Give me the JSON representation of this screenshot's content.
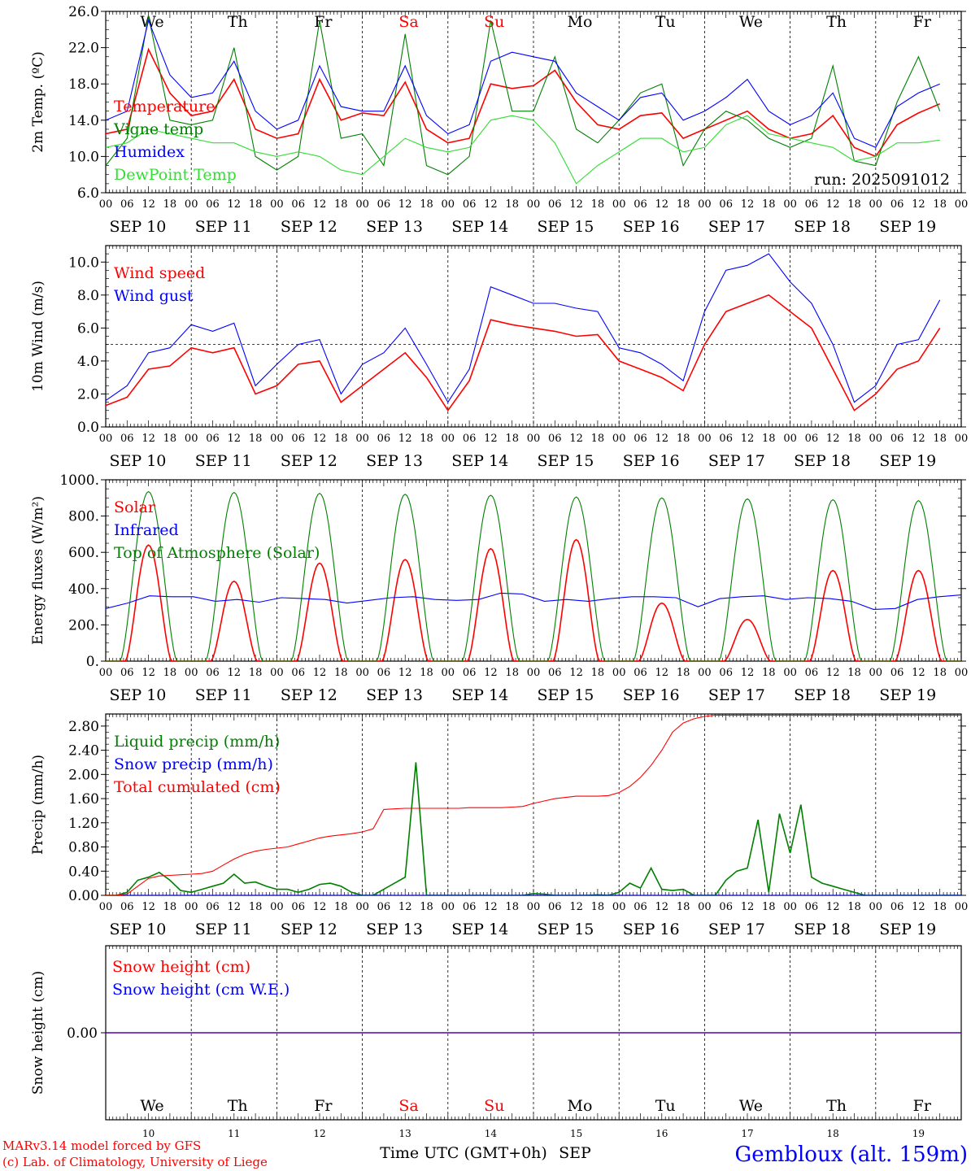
{
  "run_label": "run: 2025091012",
  "footer": {
    "model_line": "MARv3.14 model forced by GFS",
    "lab_line": "(c) Lab. of Climatology, University of Liege",
    "time_axis_label": "Time UTC (GMT+0h)",
    "month_label": "SEP",
    "station": "Gembloux (alt. 159m)"
  },
  "hour_ticks": [
    "00",
    "06",
    "12",
    "18"
  ],
  "final_hour_tick": "00",
  "day_dates": [
    "SEP 10",
    "SEP 11",
    "SEP 12",
    "SEP 13",
    "SEP 14",
    "SEP 15",
    "SEP 16",
    "SEP 17",
    "SEP 18",
    "SEP 19"
  ],
  "day_numbers": [
    "10",
    "11",
    "12",
    "13",
    "14",
    "15",
    "16",
    "17",
    "18",
    "19"
  ],
  "weekdays": [
    "We",
    "Th",
    "Fr",
    "Sa",
    "Su",
    "Mo",
    "Tu",
    "We",
    "Th",
    "Fr"
  ],
  "weekend_indices": [
    3,
    4
  ],
  "colors": {
    "red": "#ff0000",
    "green": "#007f00",
    "blue": "#0000ff",
    "light_green": "#33dd33",
    "weekend": "#ff0000",
    "station": "#0000ff"
  },
  "chart_data": [
    {
      "type": "line",
      "ylabel": "2m Temp. (ºC)",
      "ylim": [
        6,
        26
      ],
      "yticks": [
        "6.0",
        "10.0",
        "14.0",
        "18.0",
        "22.0",
        "26.0"
      ],
      "x_unit": "hours since 2025-09-10 00 UTC",
      "x": [
        0,
        6,
        12,
        18,
        24,
        30,
        36,
        42,
        48,
        54,
        60,
        66,
        72,
        78,
        84,
        90,
        96,
        102,
        108,
        114,
        120,
        126,
        132,
        138,
        144,
        150,
        156,
        162,
        168,
        174,
        180,
        186,
        192,
        198,
        204,
        210,
        216,
        222,
        228,
        234
      ],
      "series": [
        {
          "name": "Temperature",
          "color": "red",
          "values": [
            12.5,
            13.0,
            21.8,
            17.0,
            14.5,
            15.0,
            18.5,
            13.0,
            12.0,
            12.5,
            18.5,
            14.0,
            14.8,
            14.5,
            18.2,
            13.0,
            11.5,
            12.0,
            18.0,
            17.5,
            17.8,
            19.5,
            16.0,
            13.5,
            13.0,
            14.5,
            14.8,
            12.0,
            13.0,
            14.0,
            15.0,
            13.0,
            12.0,
            12.5,
            14.5,
            11.0,
            10.0,
            13.5,
            14.8,
            15.8
          ]
        },
        {
          "name": "Vigne temp",
          "color": "green",
          "values": [
            9.0,
            12.0,
            25.5,
            14.0,
            13.5,
            14.0,
            22.0,
            10.0,
            8.5,
            10.0,
            25.0,
            12.0,
            12.5,
            9.0,
            23.5,
            9.0,
            8.0,
            10.0,
            25.0,
            15.0,
            15.0,
            21.0,
            13.0,
            11.5,
            14.0,
            17.0,
            18.0,
            9.0,
            13.0,
            15.0,
            14.0,
            12.0,
            11.0,
            12.0,
            20.0,
            9.5,
            9.0,
            16.0,
            21.0,
            15.0
          ]
        },
        {
          "name": "Humidex",
          "color": "blue",
          "values": [
            14.0,
            15.0,
            25.0,
            19.0,
            16.5,
            17.0,
            20.5,
            15.0,
            13.0,
            14.0,
            20.0,
            15.5,
            15.0,
            15.0,
            20.0,
            14.5,
            12.5,
            13.5,
            20.5,
            21.5,
            21.0,
            20.5,
            17.0,
            15.5,
            14.0,
            16.5,
            17.0,
            14.0,
            15.0,
            16.5,
            18.5,
            15.0,
            13.5,
            14.5,
            17.0,
            12.0,
            11.0,
            15.5,
            17.0,
            18.0
          ]
        },
        {
          "name": "DewPoint Temp",
          "color": "light_green",
          "values": [
            11.0,
            11.5,
            13.0,
            12.5,
            12.0,
            11.5,
            11.5,
            10.5,
            10.0,
            10.5,
            10.0,
            8.5,
            8.0,
            10.0,
            12.0,
            11.0,
            10.5,
            11.0,
            14.0,
            14.5,
            14.0,
            11.5,
            7.0,
            9.0,
            10.5,
            12.0,
            12.0,
            10.5,
            11.0,
            13.5,
            14.5,
            12.5,
            12.0,
            11.5,
            11.0,
            9.5,
            10.0,
            11.5,
            11.5,
            11.8
          ]
        }
      ]
    },
    {
      "type": "line",
      "ylabel": "10m Wind (m/s)",
      "ylim": [
        0,
        11
      ],
      "yticks": [
        "0.0",
        "2.0",
        "4.0",
        "6.0",
        "8.0",
        "10.0"
      ],
      "reference_line": 5,
      "x_unit": "hours since 2025-09-10 00 UTC",
      "x": [
        0,
        6,
        12,
        18,
        24,
        30,
        36,
        42,
        48,
        54,
        60,
        66,
        72,
        78,
        84,
        90,
        96,
        102,
        108,
        114,
        120,
        126,
        132,
        138,
        144,
        150,
        156,
        162,
        168,
        174,
        180,
        186,
        192,
        198,
        204,
        210,
        216,
        222,
        228,
        234
      ],
      "series": [
        {
          "name": "Wind speed",
          "color": "red",
          "values": [
            1.3,
            1.8,
            3.5,
            3.7,
            4.8,
            4.5,
            4.8,
            2.0,
            2.5,
            3.8,
            4.0,
            1.5,
            2.5,
            3.5,
            4.5,
            3.0,
            1.0,
            2.8,
            6.5,
            6.2,
            6.0,
            5.8,
            5.5,
            5.6,
            4.0,
            3.5,
            3.0,
            2.2,
            5.0,
            7.0,
            7.5,
            8.0,
            7.0,
            6.0,
            3.5,
            1.0,
            2.0,
            3.5,
            4.0,
            6.0
          ]
        },
        {
          "name": "Wind gust",
          "color": "blue",
          "values": [
            1.6,
            2.5,
            4.5,
            4.8,
            6.2,
            5.8,
            6.3,
            2.5,
            3.8,
            5.0,
            5.3,
            2.0,
            3.8,
            4.5,
            6.0,
            3.8,
            1.5,
            3.5,
            8.5,
            8.0,
            7.5,
            7.5,
            7.2,
            7.0,
            4.8,
            4.5,
            3.8,
            2.8,
            7.0,
            9.5,
            9.8,
            10.5,
            8.8,
            7.5,
            5.0,
            1.5,
            2.5,
            5.0,
            5.3,
            7.7
          ]
        }
      ]
    },
    {
      "type": "line",
      "ylabel": "Energy fluxes (W/m²)",
      "ylim": [
        0,
        1000
      ],
      "yticks": [
        "0.",
        "200.",
        "400.",
        "600.",
        "800.",
        "1000."
      ],
      "x_unit": "hours since 2025-09-10 00 UTC",
      "day_peak_x": [
        12,
        36,
        60,
        84,
        108,
        132,
        156,
        180,
        204,
        228
      ],
      "series": [
        {
          "name": "Solar",
          "color": "red",
          "daily_peak_values": [
            640,
            440,
            540,
            560,
            620,
            670,
            320,
            230,
            500,
            500
          ]
        },
        {
          "name": "Infrared",
          "color": "blue",
          "values": [
            290,
            320,
            360,
            355,
            355,
            330,
            340,
            325,
            350,
            345,
            340,
            320,
            335,
            350,
            355,
            340,
            335,
            340,
            375,
            370,
            330,
            340,
            330,
            345,
            355,
            355,
            350,
            300,
            345,
            355,
            360,
            340,
            350,
            345,
            330,
            285,
            290,
            340,
            355,
            365
          ]
        },
        {
          "name": "Top of Atmosphere (Solar)",
          "color": "green",
          "daily_peak_values": [
            935,
            930,
            925,
            920,
            915,
            905,
            900,
            895,
            890,
            885
          ]
        }
      ]
    },
    {
      "type": "line",
      "ylabel": "Precip (mm/h)",
      "ylim": [
        0,
        3
      ],
      "yticks": [
        "0.00",
        "0.40",
        "0.80",
        "1.20",
        "1.60",
        "2.00",
        "2.40",
        "2.80"
      ],
      "x_unit": "hours since 2025-09-10 00 UTC",
      "x": [
        0,
        3,
        6,
        9,
        12,
        15,
        18,
        21,
        24,
        27,
        30,
        33,
        36,
        39,
        42,
        45,
        48,
        51,
        54,
        57,
        60,
        63,
        66,
        69,
        72,
        75,
        78,
        81,
        84,
        87,
        90,
        93,
        96,
        99,
        102,
        105,
        108,
        111,
        114,
        117,
        120,
        123,
        126,
        129,
        132,
        135,
        138,
        141,
        144,
        147,
        150,
        153,
        156,
        159,
        162,
        165,
        168,
        171,
        174,
        177,
        180,
        183,
        186,
        189,
        192,
        195,
        198,
        201,
        204,
        207,
        210,
        213,
        216,
        219,
        222,
        225,
        228,
        231,
        234,
        237,
        240
      ],
      "series": [
        {
          "name": "Liquid precip (mm/h)",
          "color": "green",
          "values": [
            0,
            0,
            0.05,
            0.25,
            0.3,
            0.38,
            0.25,
            0.08,
            0.05,
            0.1,
            0.15,
            0.2,
            0.35,
            0.2,
            0.22,
            0.15,
            0.1,
            0.1,
            0.05,
            0.1,
            0.18,
            0.2,
            0.15,
            0.05,
            0,
            0,
            0.1,
            0.2,
            0.3,
            2.2,
            0,
            0,
            0,
            0,
            0,
            0,
            0,
            0,
            0,
            0,
            0.03,
            0.02,
            0,
            0,
            0,
            0,
            0.01,
            0,
            0.05,
            0.2,
            0.12,
            0.45,
            0.1,
            0.08,
            0.1,
            0,
            0,
            0,
            0.25,
            0.4,
            0.45,
            1.25,
            0.05,
            1.35,
            0.7,
            1.5,
            0.3,
            0.2,
            0.15,
            0.1,
            0.05,
            0,
            0,
            0,
            0,
            0,
            0,
            0,
            0,
            0,
            0
          ]
        },
        {
          "name": "Snow precip (mm/h)",
          "color": "blue",
          "values": [
            0,
            0,
            0,
            0,
            0,
            0,
            0,
            0,
            0,
            0,
            0,
            0,
            0,
            0,
            0,
            0,
            0,
            0,
            0,
            0,
            0,
            0,
            0,
            0,
            0,
            0,
            0,
            0,
            0,
            0,
            0,
            0,
            0,
            0,
            0,
            0,
            0,
            0,
            0,
            0,
            0,
            0,
            0,
            0,
            0,
            0,
            0,
            0,
            0,
            0,
            0,
            0,
            0,
            0,
            0,
            0,
            0,
            0,
            0,
            0,
            0,
            0,
            0,
            0,
            0,
            0,
            0,
            0,
            0,
            0,
            0,
            0,
            0,
            0,
            0,
            0,
            0,
            0,
            0,
            0,
            0
          ]
        },
        {
          "name": "Total cumulated (cm)",
          "color": "red",
          "values": [
            0,
            0,
            0.02,
            0.15,
            0.28,
            0.32,
            0.33,
            0.34,
            0.35,
            0.36,
            0.4,
            0.5,
            0.6,
            0.68,
            0.73,
            0.76,
            0.78,
            0.8,
            0.85,
            0.9,
            0.95,
            0.98,
            1.0,
            1.02,
            1.05,
            1.1,
            1.42,
            1.43,
            1.44,
            1.44,
            1.44,
            1.44,
            1.44,
            1.44,
            1.45,
            1.45,
            1.45,
            1.45,
            1.46,
            1.47,
            1.52,
            1.56,
            1.6,
            1.62,
            1.64,
            1.64,
            1.64,
            1.65,
            1.7,
            1.8,
            1.95,
            2.15,
            2.4,
            2.7,
            2.85,
            2.92,
            2.96,
            2.98,
            2.98,
            2.98,
            2.98,
            2.98,
            2.98,
            2.98,
            2.98,
            2.98,
            2.98,
            2.98,
            2.98,
            2.98,
            2.98,
            2.98,
            2.98,
            2.98,
            2.98,
            2.98,
            2.98,
            2.98,
            2.98,
            2.98,
            2.98
          ]
        }
      ]
    },
    {
      "type": "line",
      "ylabel": "Snow height (cm)",
      "ylim": [
        -1,
        1
      ],
      "yticks": [
        "0.00"
      ],
      "series": [
        {
          "name": "Snow height (cm)",
          "color": "red",
          "values": [
            0,
            0
          ]
        },
        {
          "name": "Snow height (cm W.E.)",
          "color": "blue",
          "values": [
            0,
            0
          ]
        }
      ]
    }
  ]
}
